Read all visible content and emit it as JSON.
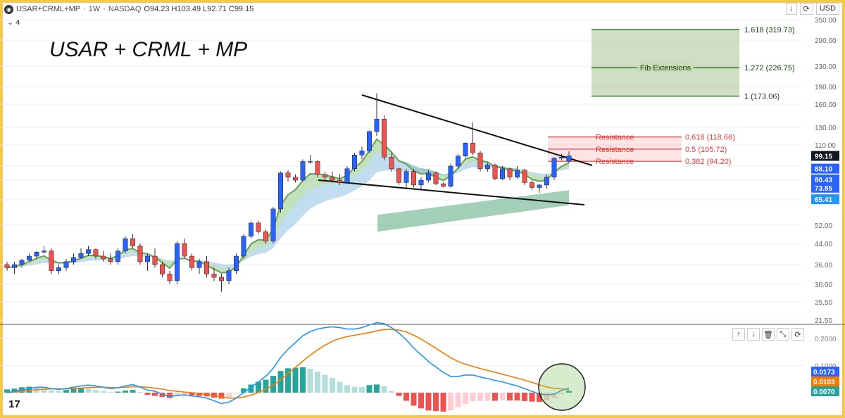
{
  "header": {
    "symbol": "USAR+CRML+MP",
    "interval": "1W",
    "exchange": "NASDAQ",
    "ohlc": "O94.23 H103.49 L92.71 C99.15",
    "collapse_count": "4",
    "currency": "USD"
  },
  "annotation_title": "USAR + CRML + MP",
  "fib_extensions": {
    "label": "Fib Extensions",
    "levels": [
      {
        "text": "1.618 (319.73)",
        "value": 319.73
      },
      {
        "text": "1.272 (226.75)",
        "value": 226.75
      },
      {
        "text": "1 (173.06)",
        "value": 173.06
      }
    ]
  },
  "resistance_levels": [
    {
      "label": "Resistance",
      "text": "0.618 (118.66)",
      "value": 118.66
    },
    {
      "label": "Resistance",
      "text": "0.5 (105.72)",
      "value": 105.72
    },
    {
      "label": "Resistance",
      "text": "0.382 (94.20)",
      "value": 94.2
    }
  ],
  "price_badges": [
    {
      "text": "99.15",
      "value": 99.15,
      "color": "#131722"
    },
    {
      "text": "88.10",
      "value": 88.1,
      "color": "#2962ff"
    },
    {
      "text": "80.43",
      "value": 80.43,
      "color": "#2962ff"
    },
    {
      "text": "73.85",
      "value": 73.85,
      "color": "#2962ff"
    },
    {
      "text": "65.41",
      "value": 65.41,
      "color": "#2196f3"
    }
  ],
  "macd_badges": [
    {
      "text": "0.0173",
      "color": "#2962ff"
    },
    {
      "text": "0.0103",
      "color": "#f57c00"
    },
    {
      "text": "0.0070",
      "color": "#26a69a"
    }
  ],
  "colors": {
    "up": "#2962ff",
    "down": "#ef5350",
    "fib": "#2e7d32",
    "resistance": "#e53935",
    "macd": "#2196f3",
    "signal": "#f57c00"
  },
  "chart_data": [
    {
      "type": "candlestick",
      "title": "USAR+CRML+MP · 1W · NASDAQ",
      "scale": "log",
      "yticks": [
        350,
        290,
        230,
        190,
        160,
        130,
        110,
        90,
        80,
        65,
        52,
        44,
        36,
        30,
        25.5,
        21.5
      ],
      "ytick_labels": [
        "350.00",
        "290.00",
        "230.00",
        "190.00",
        "160.00",
        "130.00",
        "110.00",
        "90.00",
        "80.00",
        "65.00",
        "52.00",
        "44.00",
        "36.00",
        "30.00",
        "25.50",
        "21.50"
      ],
      "ylim": [
        21.5,
        350
      ],
      "candles": [
        [
          36,
          37,
          34,
          35
        ],
        [
          35,
          37,
          33,
          36
        ],
        [
          36,
          38,
          35,
          37.5
        ],
        [
          37.5,
          40,
          37,
          39
        ],
        [
          39,
          41,
          38,
          40.5
        ],
        [
          40.5,
          43,
          40,
          41
        ],
        [
          41,
          42,
          33,
          34
        ],
        [
          34,
          36,
          33,
          35
        ],
        [
          35,
          38,
          34,
          37
        ],
        [
          37,
          40,
          36,
          38.5
        ],
        [
          38.5,
          42,
          38,
          40
        ],
        [
          40,
          43,
          39,
          41.5
        ],
        [
          41.5,
          42,
          38,
          39
        ],
        [
          39,
          41,
          37,
          38
        ],
        [
          38,
          40,
          36,
          37
        ],
        [
          37,
          42,
          36,
          41
        ],
        [
          41,
          47,
          40,
          46
        ],
        [
          46,
          48,
          42,
          43
        ],
        [
          43,
          44,
          36,
          37
        ],
        [
          37,
          40,
          34,
          39
        ],
        [
          39,
          42,
          35,
          36
        ],
        [
          36,
          37,
          32,
          33
        ],
        [
          33,
          34,
          30,
          31
        ],
        [
          31,
          45,
          30,
          44
        ],
        [
          44,
          46,
          38,
          39
        ],
        [
          39,
          40,
          34,
          35
        ],
        [
          35,
          38,
          33,
          37
        ],
        [
          37,
          39,
          32,
          33
        ],
        [
          33,
          35,
          31,
          32
        ],
        [
          32,
          33,
          28,
          31
        ],
        [
          31,
          35,
          30,
          34
        ],
        [
          34,
          40,
          33,
          39
        ],
        [
          39,
          48,
          38,
          47
        ],
        [
          47,
          54,
          46,
          53
        ],
        [
          53,
          54,
          48,
          49
        ],
        [
          49,
          50,
          44,
          45
        ],
        [
          45,
          61,
          44,
          60
        ],
        [
          60,
          86,
          58,
          85
        ],
        [
          85,
          87,
          79,
          82
        ],
        [
          82,
          84,
          78,
          80
        ],
        [
          80,
          96,
          79,
          94
        ],
        [
          94,
          100,
          92,
          94
        ],
        [
          94,
          95,
          82,
          84
        ],
        [
          84,
          86,
          80,
          82
        ],
        [
          82,
          86,
          78,
          80
        ],
        [
          80,
          84,
          76,
          78
        ],
        [
          78,
          90,
          77,
          88
        ],
        [
          88,
          102,
          86,
          100
        ],
        [
          100,
          108,
          96,
          104
        ],
        [
          104,
          126,
          102,
          125
        ],
        [
          125,
          178,
          120,
          140
        ],
        [
          140,
          145,
          95,
          98
        ],
        [
          98,
          102,
          86,
          88
        ],
        [
          88,
          89,
          76,
          78
        ],
        [
          78,
          88,
          74,
          86
        ],
        [
          86,
          88,
          74,
          76
        ],
        [
          76,
          82,
          73,
          80
        ],
        [
          80,
          87,
          78,
          85
        ],
        [
          85,
          86,
          76,
          77
        ],
        [
          77,
          78,
          74,
          75
        ],
        [
          75,
          92,
          74,
          90
        ],
        [
          90,
          101,
          88,
          99
        ],
        [
          99,
          113,
          97,
          112
        ],
        [
          112,
          136,
          100,
          102
        ],
        [
          102,
          104,
          86,
          88
        ],
        [
          88,
          93,
          86,
          91
        ],
        [
          91,
          92,
          80,
          81
        ],
        [
          81,
          90,
          80,
          88
        ],
        [
          88,
          89,
          80,
          82
        ],
        [
          82,
          90,
          81,
          87
        ],
        [
          87,
          88,
          76,
          78
        ],
        [
          78,
          80,
          72,
          74
        ],
        [
          74,
          77,
          70,
          76
        ],
        [
          76,
          84,
          73,
          82
        ],
        [
          82,
          98,
          80,
          97
        ],
        [
          97,
          101,
          95,
          98
        ],
        [
          94.23,
          103.49,
          92.71,
          99.15
        ]
      ]
    },
    {
      "type": "macd",
      "yticks": [
        0.2,
        0.1
      ],
      "ytick_labels": [
        "0.2000",
        "0.1000"
      ],
      "ylim": [
        -0.11,
        0.265
      ],
      "macd": [
        0.0,
        0.005,
        0.01,
        0.015,
        0.02,
        0.02,
        0.015,
        0.012,
        0.015,
        0.02,
        0.025,
        0.028,
        0.025,
        0.02,
        0.015,
        0.018,
        0.025,
        0.03,
        0.02,
        0.01,
        0.005,
        -0.005,
        -0.015,
        -0.01,
        -0.008,
        -0.012,
        -0.015,
        -0.02,
        -0.03,
        -0.04,
        -0.035,
        -0.02,
        0.0,
        0.02,
        0.04,
        0.06,
        0.09,
        0.13,
        0.16,
        0.185,
        0.21,
        0.225,
        0.235,
        0.24,
        0.243,
        0.24,
        0.235,
        0.235,
        0.24,
        0.25,
        0.258,
        0.255,
        0.24,
        0.22,
        0.195,
        0.165,
        0.14,
        0.115,
        0.095,
        0.075,
        0.06,
        0.06,
        0.065,
        0.065,
        0.058,
        0.052,
        0.045,
        0.04,
        0.032,
        0.025,
        0.015,
        0.005,
        -0.005,
        -0.008,
        -0.005,
        0.008,
        0.0173
      ],
      "signal": [
        0.0,
        0.002,
        0.005,
        0.008,
        0.011,
        0.013,
        0.014,
        0.014,
        0.014,
        0.015,
        0.017,
        0.019,
        0.02,
        0.02,
        0.019,
        0.019,
        0.02,
        0.022,
        0.022,
        0.02,
        0.017,
        0.013,
        0.008,
        0.005,
        0.002,
        0.0,
        -0.003,
        -0.006,
        -0.011,
        -0.016,
        -0.02,
        -0.02,
        -0.016,
        -0.009,
        0.001,
        0.013,
        0.028,
        0.048,
        0.07,
        0.093,
        0.116,
        0.138,
        0.158,
        0.175,
        0.19,
        0.2,
        0.207,
        0.212,
        0.217,
        0.222,
        0.228,
        0.233,
        0.234,
        0.231,
        0.224,
        0.212,
        0.198,
        0.181,
        0.164,
        0.146,
        0.129,
        0.115,
        0.105,
        0.097,
        0.089,
        0.082,
        0.075,
        0.068,
        0.061,
        0.054,
        0.046,
        0.038,
        0.029,
        0.021,
        0.016,
        0.014,
        0.0103
      ],
      "histogram": [
        0.012,
        0.015,
        0.02,
        0.022,
        0.018,
        0.012,
        0.008,
        0.006,
        0.01,
        0.014,
        0.016,
        0.015,
        0.01,
        0.005,
        0.002,
        0.004,
        0.008,
        0.01,
        0.003,
        -0.008,
        -0.012,
        -0.016,
        -0.02,
        -0.014,
        -0.01,
        -0.01,
        -0.012,
        -0.014,
        -0.018,
        -0.022,
        -0.016,
        -0.004,
        0.016,
        0.03,
        0.04,
        0.048,
        0.062,
        0.08,
        0.09,
        0.092,
        0.094,
        0.088,
        0.078,
        0.066,
        0.054,
        0.04,
        0.028,
        0.022,
        0.02,
        0.028,
        0.03,
        0.024,
        0.006,
        -0.012,
        -0.03,
        -0.048,
        -0.058,
        -0.066,
        -0.068,
        -0.07,
        -0.066,
        -0.054,
        -0.042,
        -0.032,
        -0.031,
        -0.03,
        -0.03,
        -0.028,
        -0.029,
        -0.029,
        -0.031,
        -0.033,
        -0.034,
        -0.028,
        -0.02,
        -0.006,
        0.007
      ]
    }
  ]
}
